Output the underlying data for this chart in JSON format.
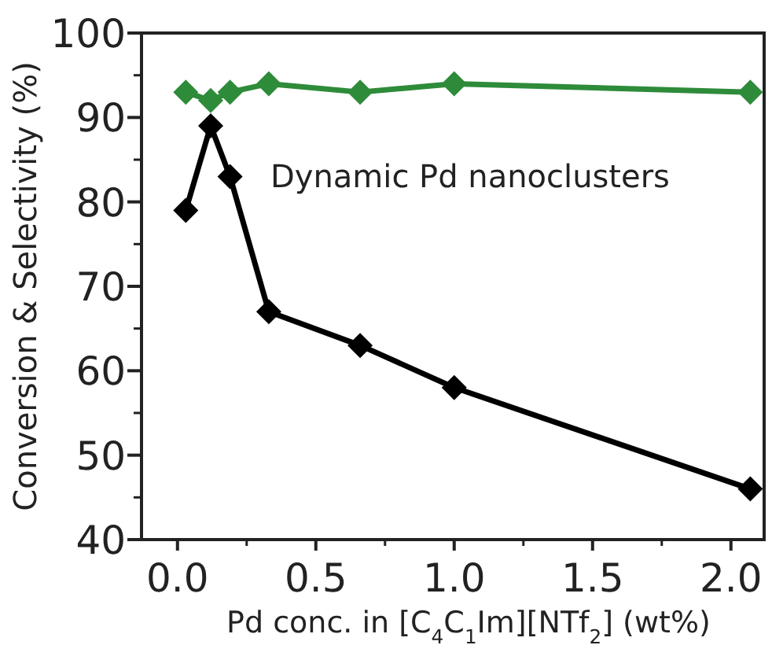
{
  "chart_data": {
    "type": "line",
    "ylabel": "Conversion & Selectivity (%)",
    "xlabel": "Pd conc. in [C$_{4}$C$_{1}$Im][NTf$_{2}$] (wt%)",
    "annotations": [
      "Dynamic Pd nanoclusters"
    ],
    "x": [
      0.03,
      0.12,
      0.19,
      0.33,
      0.66,
      1.0,
      2.07
    ],
    "series": [
      {
        "color": "#2e8b3a",
        "values": [
          93,
          92,
          93,
          94,
          93,
          94,
          93
        ]
      },
      {
        "color": "#000000",
        "values": [
          79,
          89,
          83,
          67,
          63,
          58,
          46
        ]
      }
    ],
    "xlim": [
      -0.13,
      2.12
    ],
    "xticks": [
      {
        "value": 0,
        "label": "0.0"
      },
      0.5,
      {
        "value": 1,
        "label": "1.0"
      },
      1.5,
      {
        "value": 2,
        "label": "2.0"
      }
    ],
    "ylim": [
      40,
      100
    ],
    "yticks": [
      40,
      50,
      60,
      70,
      80,
      90,
      100
    ],
    "marker": "diamond",
    "line_style": "solid",
    "grid": false
  }
}
